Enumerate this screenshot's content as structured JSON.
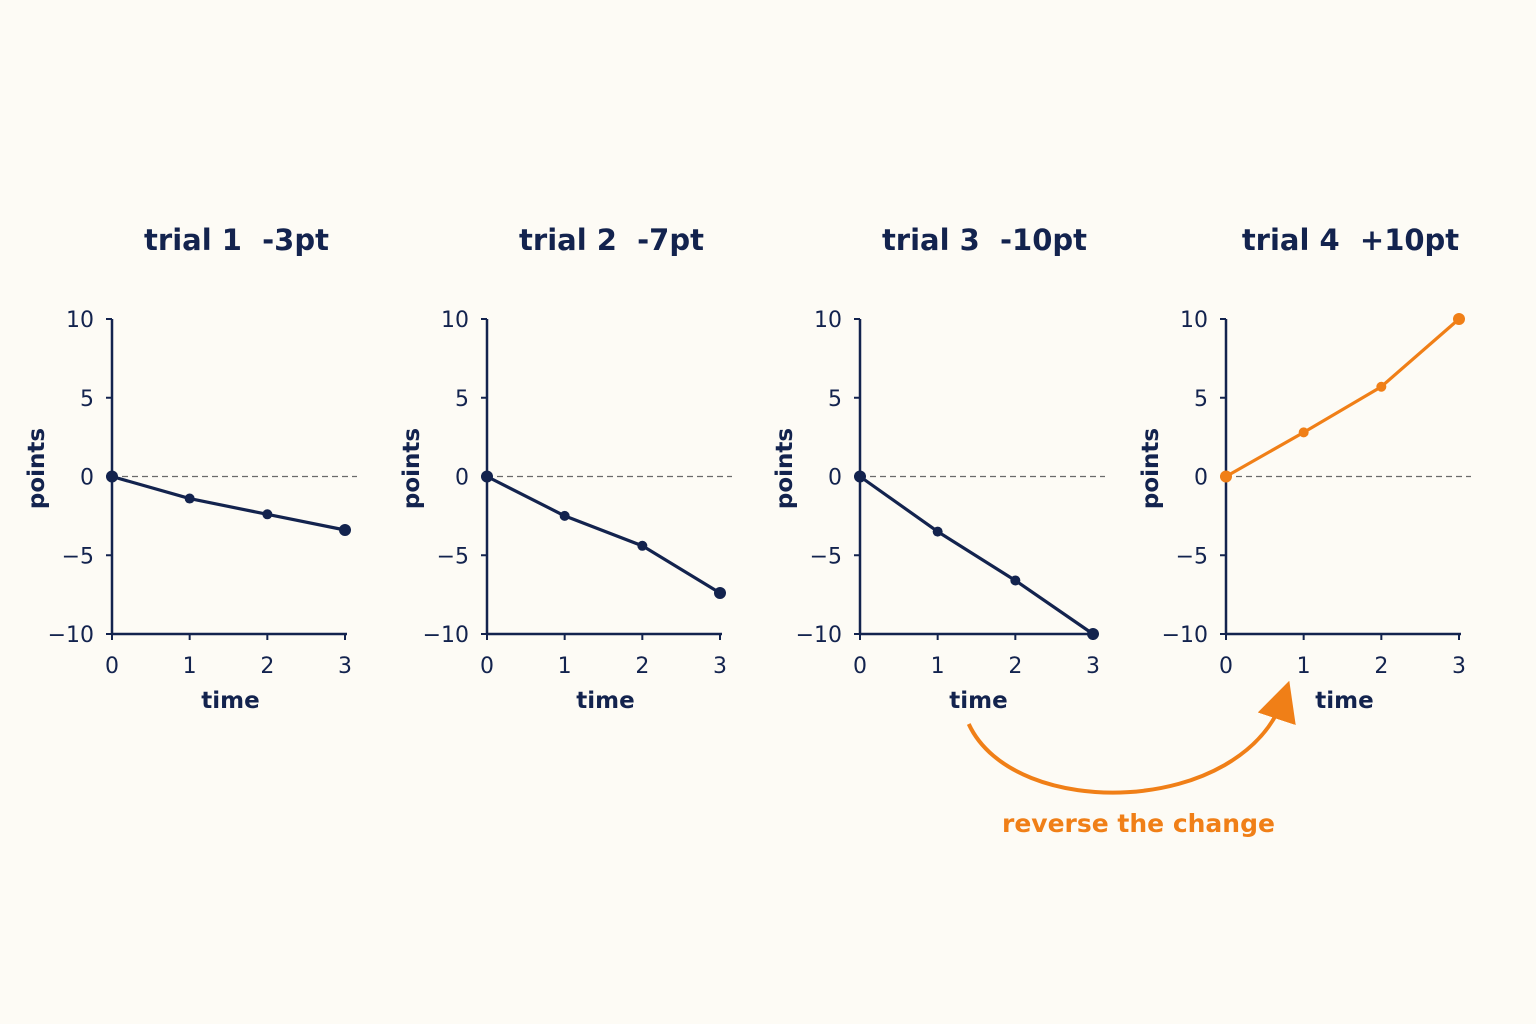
{
  "colors": {
    "background": "#fdfbf5",
    "navy": "#13234e",
    "orange": "#f07f17",
    "zero_line": "#6a6a6a"
  },
  "chart_data": [
    {
      "type": "line",
      "title": "trial 1  -3pt",
      "xlabel": "time",
      "ylabel": "points",
      "x": [
        0,
        1,
        2,
        3
      ],
      "y": [
        0,
        -1.4,
        -2.4,
        -3.4
      ],
      "xlim": [
        0,
        3
      ],
      "ylim": [
        -10,
        10
      ],
      "xticks": [
        "0",
        "1",
        "2",
        "3"
      ],
      "yticks": [
        "10",
        "5",
        "0",
        "−5",
        "−10"
      ],
      "zero_line": "dashed",
      "color": "navy"
    },
    {
      "type": "line",
      "title": "trial 2  -7pt",
      "xlabel": "time",
      "ylabel": "points",
      "x": [
        0,
        1,
        2,
        3
      ],
      "y": [
        0,
        -2.5,
        -4.4,
        -7.4
      ],
      "xlim": [
        0,
        3
      ],
      "ylim": [
        -10,
        10
      ],
      "xticks": [
        "0",
        "1",
        "2",
        "3"
      ],
      "yticks": [
        "10",
        "5",
        "0",
        "−5",
        "−10"
      ],
      "zero_line": "dashed",
      "color": "navy"
    },
    {
      "type": "line",
      "title": "trial 3  -10pt",
      "xlabel": "time",
      "ylabel": "points",
      "x": [
        0,
        1,
        2,
        3
      ],
      "y": [
        0,
        -3.5,
        -6.6,
        -10
      ],
      "xlim": [
        0,
        3
      ],
      "ylim": [
        -10,
        10
      ],
      "xticks": [
        "0",
        "1",
        "2",
        "3"
      ],
      "yticks": [
        "10",
        "5",
        "0",
        "−5",
        "−10"
      ],
      "zero_line": "dashed",
      "color": "navy"
    },
    {
      "type": "line",
      "title": "trial 4  +10pt",
      "xlabel": "time",
      "ylabel": "points",
      "x": [
        0,
        1,
        2,
        3
      ],
      "y": [
        0,
        2.8,
        5.7,
        10
      ],
      "xlim": [
        0,
        3
      ],
      "ylim": [
        -10,
        10
      ],
      "xticks": [
        "0",
        "1",
        "2",
        "3"
      ],
      "yticks": [
        "10",
        "5",
        "0",
        "−5",
        "−10"
      ],
      "zero_line": "dashed",
      "color": "orange"
    }
  ],
  "annotation": {
    "text": "reverse the change",
    "from_chart": 3,
    "to_chart": 4,
    "color": "orange"
  }
}
